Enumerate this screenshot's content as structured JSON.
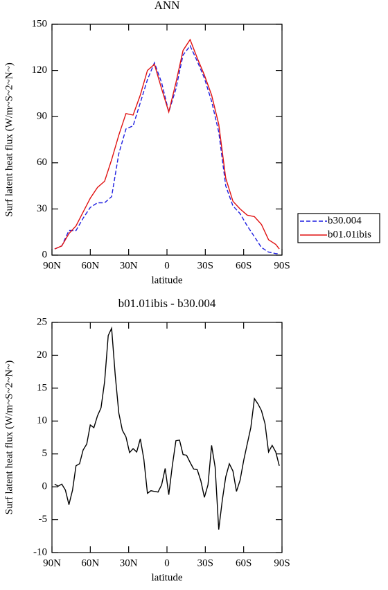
{
  "chart_data": [
    {
      "type": "line",
      "title": "ANN",
      "xlabel": "latitude",
      "ylabel": "Surf latent heat flux (W/m~S~2~N~)",
      "x": [
        87.9,
        82.3,
        76.7,
        71.2,
        65.6,
        60.0,
        54.4,
        48.8,
        43.3,
        37.7,
        32.1,
        26.5,
        20.9,
        15.3,
        9.8,
        4.2,
        -1.4,
        -7.0,
        -12.6,
        -18.1,
        -23.7,
        -29.3,
        -34.9,
        -40.5,
        -46.0,
        -51.6,
        -57.2,
        -62.8,
        -68.4,
        -73.9,
        -79.5,
        -85.1,
        -87.9
      ],
      "series": [
        {
          "name": "b30.004",
          "color": "#1f1fe0",
          "linestyle": "dashed",
          "values": [
            4,
            6,
            16,
            16,
            24,
            31,
            34,
            34,
            38,
            66,
            82,
            84,
            99,
            114,
            125,
            112,
            93,
            108,
            130,
            136,
            126,
            115,
            100,
            80,
            45,
            32,
            27,
            19,
            12,
            5,
            2,
            1,
            1
          ]
        },
        {
          "name": "b01.01ibis",
          "color": "#e01010",
          "linestyle": "solid",
          "values": [
            4,
            6,
            14,
            19,
            28,
            37,
            44,
            48,
            62,
            78,
            92,
            91,
            104,
            120,
            124,
            108,
            93,
            112,
            133,
            140,
            128,
            117,
            104,
            85,
            50,
            35,
            30,
            26,
            25,
            20,
            10,
            7,
            4
          ]
        }
      ],
      "xlim": [
        90,
        -90
      ],
      "xticks": [
        {
          "value": 90,
          "label": "90N"
        },
        {
          "value": 60,
          "label": "60N"
        },
        {
          "value": 30,
          "label": "30N"
        },
        0,
        {
          "value": -30,
          "label": "30S"
        },
        {
          "value": -60,
          "label": "60S"
        },
        {
          "value": -90,
          "label": "90S"
        }
      ],
      "ylim": [
        0,
        150
      ],
      "yticks": [
        0,
        30,
        60,
        90,
        120,
        150
      ],
      "legend": "right"
    },
    {
      "type": "line",
      "title": "b01.01ibis - b30.004",
      "xlabel": "latitude",
      "ylabel": "Surf latent heat flux (W/m~S~2~N~)",
      "x": [
        87.9,
        85.1,
        82.3,
        79.5,
        76.7,
        73.9,
        71.2,
        68.4,
        65.6,
        62.8,
        60.0,
        57.2,
        54.4,
        51.6,
        48.8,
        46.0,
        43.3,
        40.5,
        37.7,
        34.9,
        32.1,
        29.3,
        26.5,
        23.7,
        20.9,
        18.1,
        15.3,
        12.6,
        9.8,
        7.0,
        4.2,
        1.4,
        -1.4,
        -4.2,
        -7.0,
        -9.8,
        -12.6,
        -15.3,
        -18.1,
        -20.9,
        -23.7,
        -26.5,
        -29.3,
        -32.1,
        -34.9,
        -37.7,
        -40.5,
        -43.3,
        -46.0,
        -48.8,
        -51.6,
        -54.4,
        -57.2,
        -60.0,
        -62.8,
        -65.6,
        -68.4,
        -71.2,
        -73.9,
        -76.7,
        -79.5,
        -82.3,
        -85.1,
        -87.9
      ],
      "series": [
        {
          "color": "#000000",
          "linestyle": "solid",
          "values": [
            0.4,
            0.1,
            0.4,
            -0.5,
            -2.7,
            -0.5,
            3.2,
            3.5,
            5.6,
            6.5,
            9.4,
            9.0,
            10.8,
            12.0,
            16.0,
            23.0,
            24.1,
            17.0,
            11.2,
            8.6,
            7.6,
            5.2,
            5.8,
            5.3,
            7.3,
            4.2,
            -1.0,
            -0.6,
            -0.7,
            -0.8,
            0.3,
            2.8,
            -1.2,
            3.2,
            7.0,
            7.1,
            4.9,
            4.8,
            3.7,
            2.7,
            2.6,
            0.9,
            -1.6,
            0.3,
            6.3,
            3.0,
            -6.5,
            -2.0,
            1.5,
            3.5,
            2.4,
            -0.7,
            1.0,
            4.0,
            6.5,
            9.0,
            13.4,
            12.6,
            11.6,
            9.6,
            5.3,
            6.3,
            5.3,
            3.2
          ]
        }
      ],
      "xlim": [
        90,
        -90
      ],
      "xticks": [
        {
          "value": 90,
          "label": "90N"
        },
        {
          "value": 60,
          "label": "60N"
        },
        {
          "value": 30,
          "label": "30N"
        },
        0,
        {
          "value": -30,
          "label": "30S"
        },
        {
          "value": -60,
          "label": "60S"
        },
        {
          "value": -90,
          "label": "90S"
        }
      ],
      "ylim": [
        -10,
        25
      ],
      "yticks": [
        -10,
        -5,
        0,
        5,
        10,
        15,
        20,
        25
      ]
    }
  ]
}
